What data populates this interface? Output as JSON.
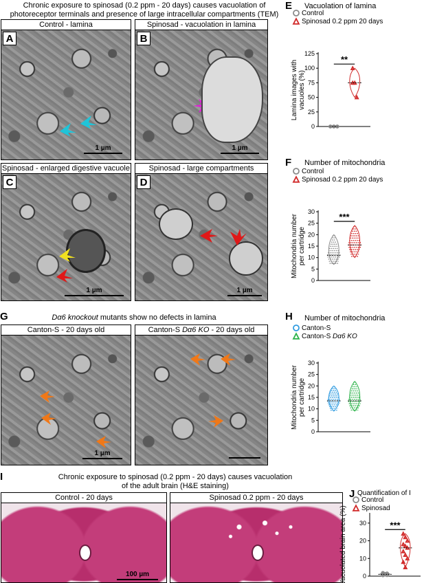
{
  "panels": {
    "top_title": [
      "Chronic exposure to spinosad (0.2 ppm - 20 days) causes vacuolation of",
      "photoreceptor terminals and presence of large intracellular compartments (TEM)"
    ],
    "A": {
      "letter": "A",
      "title": "Control - lamina",
      "scale": "1 µm"
    },
    "B": {
      "letter": "B",
      "title": "Spinosad - vacuolation in lamina",
      "scale": "1 µm"
    },
    "C": {
      "letter": "C",
      "title": "Spinosad - enlarged digestive vacuole",
      "scale": "1 µm"
    },
    "D": {
      "letter": "D",
      "title": "Spinosad - large compartments",
      "scale": "1 µm"
    },
    "G_label": "G",
    "G_title_pre": "Dα6 knockout",
    "G_title_post": " mutants show no defects in lamina",
    "G_left": {
      "title": "Canton-S - 20 days old",
      "scale": "1 µm"
    },
    "G_right": {
      "title_pre": "Canton-S ",
      "title_italic": "Dα6 KO",
      "title_post": " - 20 days old"
    },
    "I_label": "I",
    "I_title": [
      "Chronic exposure to spinosad (0.2 ppm - 20 days) causes vacuolation",
      "of the adult brain (H&E staining)"
    ],
    "I_left": {
      "title": "Control - 20 days",
      "scale": "100 µm"
    },
    "I_right": {
      "title": "Spinosad 0.2 ppm - 20 days"
    }
  },
  "colors": {
    "control": "#8a8a8a",
    "spinosad": "#d12a2a",
    "canton": "#2f9be0",
    "ko": "#2db34a",
    "cyan_arrow": "#20c4d8",
    "magenta_arrow": "#e020d8",
    "green_arrow": "#20d040",
    "yellow_arrow": "#f0e020",
    "red_arrow": "#e01818",
    "orange_arrow": "#f07818"
  },
  "chart_data": [
    {
      "panel": "E",
      "type": "violin",
      "title": "Vacuolation of lamina",
      "legend": [
        "Control",
        "Spinosad 0.2 ppm 20 days"
      ],
      "ylabel": [
        "Lamina images with",
        "vacuoles (%)"
      ],
      "ylim": [
        0,
        125
      ],
      "yticks": [
        0,
        25,
        50,
        75,
        100,
        125
      ],
      "significance": "**",
      "series": [
        {
          "name": "Control",
          "values": [
            0,
            0,
            0
          ],
          "median": 0
        },
        {
          "name": "Spinosad 0.2 ppm 20 days",
          "values": [
            100,
            75,
            50,
            75
          ],
          "median": 75
        }
      ]
    },
    {
      "panel": "F",
      "type": "violin",
      "title": "Number of mitochondria",
      "legend": [
        "Control",
        "Spinosad 0.2 ppm 20 days"
      ],
      "ylabel": [
        "Mitochondria number",
        "per cartridge"
      ],
      "ylim": [
        0,
        30
      ],
      "yticks": [
        0,
        5,
        10,
        15,
        20,
        25,
        30
      ],
      "significance": "***",
      "series": [
        {
          "name": "Control",
          "median": 11,
          "range": [
            7,
            20
          ]
        },
        {
          "name": "Spinosad 0.2 ppm 20 days",
          "median": 15.5,
          "range": [
            10,
            24
          ]
        }
      ]
    },
    {
      "panel": "H",
      "type": "violin",
      "title": "Number of mitochondria",
      "legend_pre": [
        "Canton-S",
        "Canton-S "
      ],
      "legend_italic": [
        "",
        "Dα6 KO"
      ],
      "ylabel": [
        "Mitochondria number",
        "per cartridge"
      ],
      "ylim": [
        0,
        30
      ],
      "yticks": [
        0,
        5,
        10,
        15,
        20,
        25,
        30
      ],
      "series": [
        {
          "name": "Canton-S",
          "median": 13.5,
          "range": [
            9,
            20
          ]
        },
        {
          "name": "Canton-S Dα6 KO",
          "median": 13.5,
          "range": [
            9,
            22
          ]
        }
      ]
    },
    {
      "panel": "J",
      "type": "violin",
      "title": "Quantification of I",
      "legend": [
        "Control",
        "Spinosad"
      ],
      "ylabel": [
        "Vacuolated brain area (%)"
      ],
      "ylim": [
        0,
        35
      ],
      "yticks": [
        0,
        10,
        20,
        30
      ],
      "significance": "***",
      "series": [
        {
          "name": "Control",
          "values": [
            0.5,
            1,
            1.5,
            0.8,
            1.2,
            0.6,
            1.8,
            1.0,
            0.7,
            1.3
          ],
          "median": 1
        },
        {
          "name": "Spinosad",
          "values": [
            24,
            22,
            20,
            18,
            17,
            16,
            14,
            12,
            10,
            8,
            5
          ],
          "median": 16
        }
      ]
    }
  ]
}
